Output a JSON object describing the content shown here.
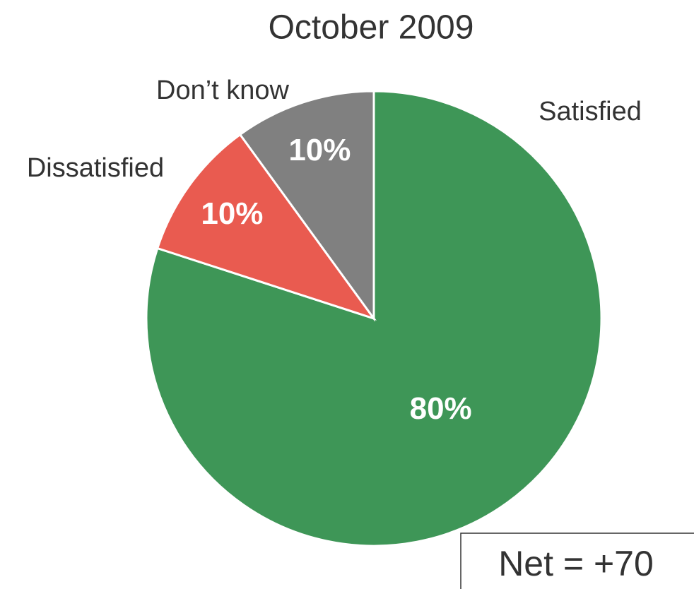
{
  "chart_data": {
    "type": "pie",
    "title": "October 2009",
    "categories": [
      "Satisfied",
      "Dissatisfied",
      "Don’t know"
    ],
    "values": [
      80,
      10,
      10
    ],
    "value_labels": [
      "80%",
      "10%",
      "10%"
    ],
    "colors": [
      "#3e9657",
      "#e95b50",
      "#808080"
    ],
    "annotation": "Net = +70"
  }
}
